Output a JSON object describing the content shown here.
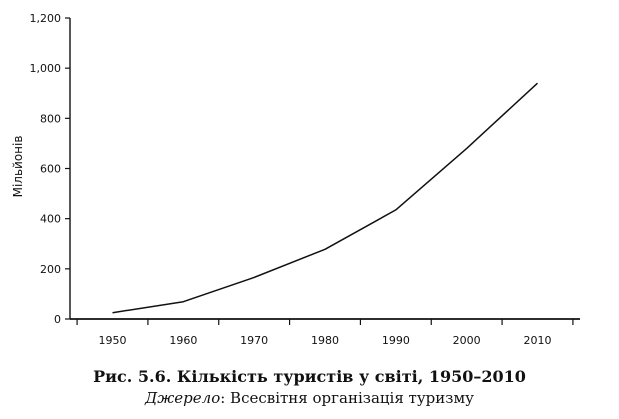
{
  "chart_data": {
    "type": "line",
    "x": [
      1950,
      1960,
      1970,
      1980,
      1990,
      2000,
      2010
    ],
    "series": [
      {
        "values": [
          25,
          69,
          166,
          278,
          435,
          680,
          940
        ]
      }
    ],
    "x_tick_labels": [
      "1950",
      "1960",
      "1970",
      "1980",
      "1990",
      "2000",
      "2010"
    ],
    "y_ticks": [
      0,
      200,
      400,
      600,
      800,
      1000,
      1200
    ],
    "y_tick_labels": [
      "0",
      "200",
      "400",
      "600",
      "800",
      "1,000",
      "1,200"
    ],
    "ylabel": "Мільйонів",
    "xlabel": "",
    "xlim": [
      1944,
      2016
    ],
    "ylim": [
      0,
      1200
    ],
    "grid": false,
    "line_color": "#111111"
  },
  "caption": {
    "title": "Рис. 5.6. Кількість туристів у світі, 1950–2010",
    "source_label": "Джерело",
    "source_text": ": Всесвітня організація туризму"
  }
}
